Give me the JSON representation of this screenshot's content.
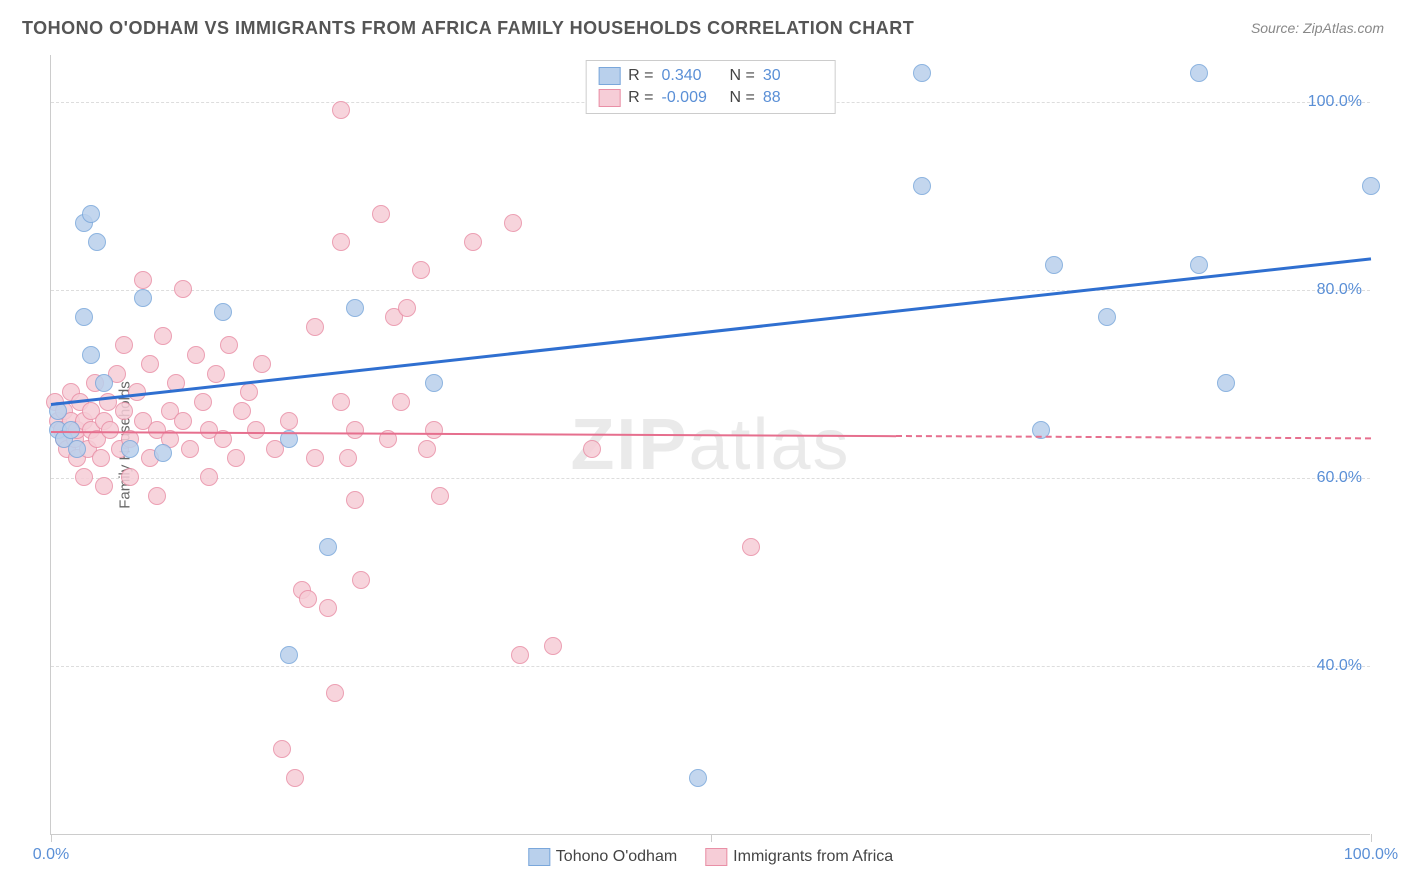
{
  "title": "TOHONO O'ODHAM VS IMMIGRANTS FROM AFRICA FAMILY HOUSEHOLDS CORRELATION CHART",
  "source": "Source: ZipAtlas.com",
  "ylabel": "Family Households",
  "watermark_bold": "ZIP",
  "watermark_rest": "atlas",
  "chart": {
    "type": "scatter",
    "xlim": [
      0,
      100
    ],
    "ylim": [
      22,
      105
    ],
    "y_gridlines": [
      40,
      60,
      80,
      100
    ],
    "y_tick_labels": [
      "40.0%",
      "60.0%",
      "80.0%",
      "100.0%"
    ],
    "x_ticks": [
      0,
      50,
      100
    ],
    "x_tick_labels": [
      "0.0%",
      "",
      "100.0%"
    ],
    "grid_color": "#dddddd",
    "axis_color": "#cccccc",
    "background_color": "#ffffff",
    "point_radius": 9,
    "series": [
      {
        "name": "Tohono O'odham",
        "color_fill": "#b9d0ec",
        "color_stroke": "#7aa7db",
        "R": "0.340",
        "N": "30",
        "trend": {
          "x1": 0,
          "y1": 68,
          "x2": 100,
          "y2": 83.5,
          "color": "#2f6fd0",
          "width": 3,
          "dash_after": 100
        },
        "points": [
          [
            0.5,
            65
          ],
          [
            0.5,
            67
          ],
          [
            1,
            64
          ],
          [
            1.5,
            65
          ],
          [
            2,
            63
          ],
          [
            2.5,
            77
          ],
          [
            2.5,
            87
          ],
          [
            3,
            88
          ],
          [
            3.5,
            85
          ],
          [
            3,
            73
          ],
          [
            4,
            70
          ],
          [
            6,
            63
          ],
          [
            7,
            79
          ],
          [
            8.5,
            62.5
          ],
          [
            13,
            77.5
          ],
          [
            18,
            64
          ],
          [
            18,
            41
          ],
          [
            21,
            52.5
          ],
          [
            23,
            78
          ],
          [
            29,
            70
          ],
          [
            49,
            28
          ],
          [
            66,
            103
          ],
          [
            66,
            91
          ],
          [
            75,
            65
          ],
          [
            76,
            82.5
          ],
          [
            80,
            77
          ],
          [
            87,
            103
          ],
          [
            87,
            82.5
          ],
          [
            89,
            70
          ],
          [
            100,
            91
          ]
        ]
      },
      {
        "name": "Immigrants from Africa",
        "color_fill": "#f6cdd7",
        "color_stroke": "#e98fa6",
        "R": "-0.009",
        "N": "88",
        "trend": {
          "x1": 0,
          "y1": 65,
          "x2": 100,
          "y2": 64.3,
          "color": "#e66f8e",
          "width": 2,
          "dash_after": 64
        },
        "points": [
          [
            0.3,
            68
          ],
          [
            0.5,
            66
          ],
          [
            0.8,
            65
          ],
          [
            1,
            64
          ],
          [
            1,
            67
          ],
          [
            1.2,
            63
          ],
          [
            1.5,
            66
          ],
          [
            1.5,
            69
          ],
          [
            1.8,
            64
          ],
          [
            2,
            65
          ],
          [
            2,
            62
          ],
          [
            2.2,
            68
          ],
          [
            2.5,
            66
          ],
          [
            2.5,
            60
          ],
          [
            2.8,
            63
          ],
          [
            3,
            67
          ],
          [
            3,
            65
          ],
          [
            3.3,
            70
          ],
          [
            3.5,
            64
          ],
          [
            3.8,
            62
          ],
          [
            4,
            66
          ],
          [
            4,
            59
          ],
          [
            4.3,
            68
          ],
          [
            4.5,
            65
          ],
          [
            5,
            71
          ],
          [
            5.2,
            63
          ],
          [
            5.5,
            67
          ],
          [
            5.5,
            74
          ],
          [
            6,
            64
          ],
          [
            6,
            60
          ],
          [
            6.5,
            69
          ],
          [
            7,
            66
          ],
          [
            7,
            81
          ],
          [
            7.5,
            62
          ],
          [
            7.5,
            72
          ],
          [
            8,
            65
          ],
          [
            8,
            58
          ],
          [
            8.5,
            75
          ],
          [
            9,
            67
          ],
          [
            9,
            64
          ],
          [
            9.5,
            70
          ],
          [
            10,
            66
          ],
          [
            10,
            80
          ],
          [
            10.5,
            63
          ],
          [
            11,
            73
          ],
          [
            11.5,
            68
          ],
          [
            12,
            65
          ],
          [
            12,
            60
          ],
          [
            12.5,
            71
          ],
          [
            13,
            64
          ],
          [
            13.5,
            74
          ],
          [
            14,
            62
          ],
          [
            14.5,
            67
          ],
          [
            15,
            69
          ],
          [
            15.5,
            65
          ],
          [
            16,
            72
          ],
          [
            17,
            63
          ],
          [
            17.5,
            31
          ],
          [
            18,
            66
          ],
          [
            18.5,
            28
          ],
          [
            19,
            48
          ],
          [
            19.5,
            47
          ],
          [
            20,
            62
          ],
          [
            20,
            76
          ],
          [
            21,
            46
          ],
          [
            21.5,
            37
          ],
          [
            22,
            85
          ],
          [
            22,
            68
          ],
          [
            22.5,
            62
          ],
          [
            22,
            99
          ],
          [
            23,
            65
          ],
          [
            23,
            57.5
          ],
          [
            23.5,
            49
          ],
          [
            25,
            88
          ],
          [
            25.5,
            64
          ],
          [
            26,
            77
          ],
          [
            26.5,
            68
          ],
          [
            27,
            78
          ],
          [
            28,
            82
          ],
          [
            28.5,
            63
          ],
          [
            29,
            65
          ],
          [
            29.5,
            58
          ],
          [
            32,
            85
          ],
          [
            35,
            87
          ],
          [
            35.5,
            41
          ],
          [
            38,
            42
          ],
          [
            41,
            63
          ],
          [
            53,
            52.5
          ]
        ]
      }
    ]
  },
  "legend_top": {
    "rows": [
      {
        "swatch_fill": "#b9d0ec",
        "swatch_stroke": "#7aa7db",
        "r_label": "R =",
        "r_val": "0.340",
        "n_label": "N =",
        "n_val": "30"
      },
      {
        "swatch_fill": "#f6cdd7",
        "swatch_stroke": "#e98fa6",
        "r_label": "R =",
        "r_val": "-0.009",
        "n_label": "N =",
        "n_val": "88"
      }
    ]
  },
  "legend_bottom": {
    "items": [
      {
        "swatch_fill": "#b9d0ec",
        "swatch_stroke": "#7aa7db",
        "label": "Tohono O'odham"
      },
      {
        "swatch_fill": "#f6cdd7",
        "swatch_stroke": "#e98fa6",
        "label": "Immigrants from Africa"
      }
    ]
  }
}
